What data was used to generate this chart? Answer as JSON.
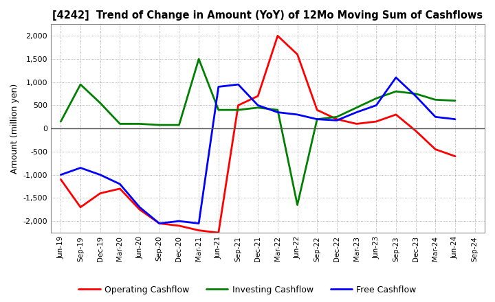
{
  "title": "[4242]  Trend of Change in Amount (YoY) of 12Mo Moving Sum of Cashflows",
  "ylabel": "Amount (million yen)",
  "x_labels": [
    "Jun-19",
    "Sep-19",
    "Dec-19",
    "Mar-20",
    "Jun-20",
    "Sep-20",
    "Dec-20",
    "Mar-21",
    "Jun-21",
    "Sep-21",
    "Dec-21",
    "Mar-22",
    "Jun-22",
    "Sep-22",
    "Dec-22",
    "Mar-23",
    "Jun-23",
    "Sep-23",
    "Dec-23",
    "Mar-24",
    "Jun-24",
    "Sep-24"
  ],
  "operating": [
    -1100,
    -1700,
    -1400,
    -1300,
    -1750,
    -2050,
    -2100,
    -2200,
    -2250,
    500,
    700,
    2000,
    1600,
    400,
    200,
    100,
    150,
    300,
    -50,
    -450,
    -600,
    null
  ],
  "investing": [
    150,
    950,
    550,
    100,
    100,
    75,
    75,
    1500,
    400,
    400,
    450,
    400,
    -1650,
    200,
    250,
    450,
    650,
    800,
    750,
    620,
    600,
    null
  ],
  "free": [
    -1000,
    -850,
    -1000,
    -1200,
    -1700,
    -2050,
    -2000,
    -2050,
    900,
    950,
    500,
    350,
    300,
    200,
    175,
    350,
    500,
    1100,
    700,
    250,
    200,
    null
  ],
  "operating_color": "#ff0000",
  "investing_color": "#008000",
  "free_color": "#0000ff",
  "ylim": [
    -2250,
    2250
  ],
  "yticks": [
    -2000,
    -1500,
    -1000,
    -500,
    0,
    500,
    1000,
    1500,
    2000
  ],
  "bg_color": "#ffffff",
  "grid_color": "#999999",
  "legend_labels": [
    "Operating Cashflow",
    "Investing Cashflow",
    "Free Cashflow"
  ]
}
